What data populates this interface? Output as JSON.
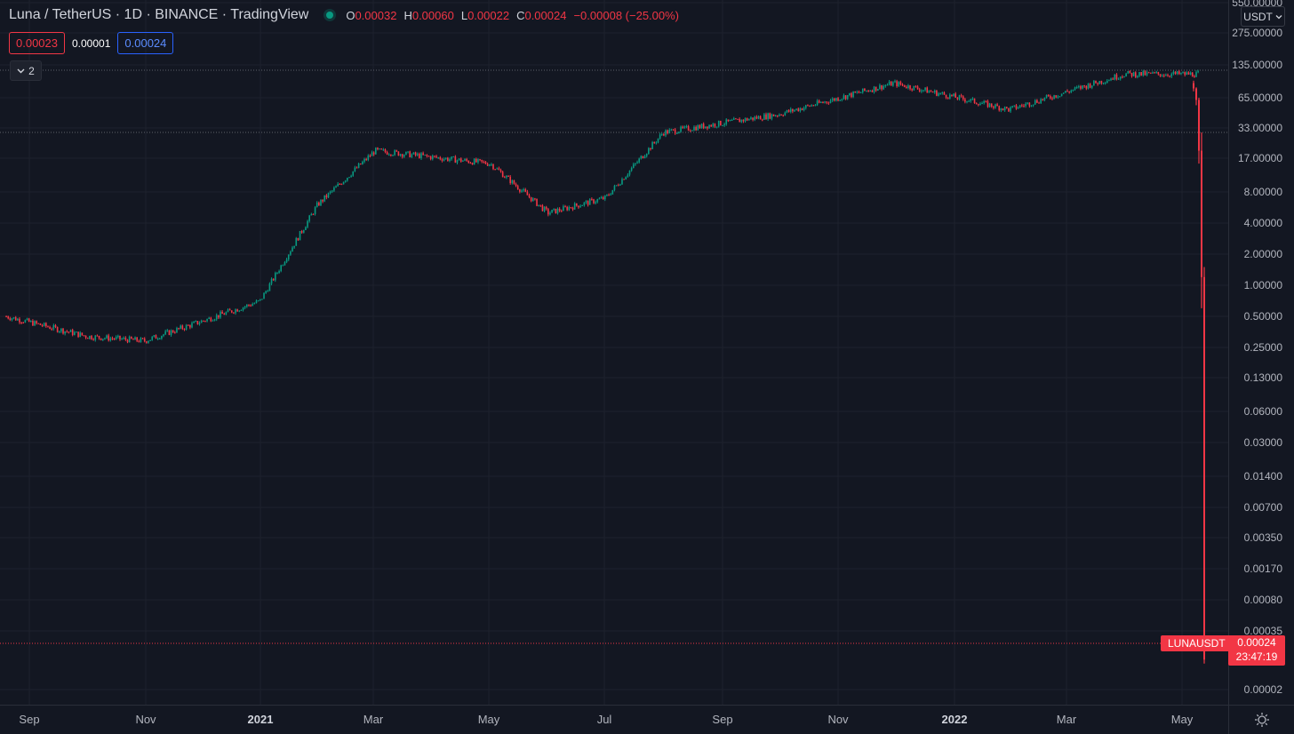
{
  "header": {
    "title": "Luna / TetherUS · 1D · BINANCE · TradingView",
    "ohlc": {
      "o_label": "O",
      "o_value": "0.00032",
      "h_label": "H",
      "h_value": "0.00060",
      "l_label": "L",
      "l_value": "0.00022",
      "c_label": "C",
      "c_value": "0.00024",
      "change": "−0.00008 (−25.00%)"
    },
    "live_indicator_icon": "live-dot-icon"
  },
  "quote": {
    "bid": "0.00023",
    "spread": "0.00001",
    "ask": "0.00024"
  },
  "collapse_button": {
    "label": "2",
    "icon": "chevron-down-icon"
  },
  "currency": {
    "label": "USDT"
  },
  "price_scale": {
    "labels": [
      "550.00000",
      "275.00000",
      "135.00000",
      "65.00000",
      "33.00000",
      "17.00000",
      "8.00000",
      "4.00000",
      "2.00000",
      "1.00000",
      "0.50000",
      "0.25000",
      "0.13000",
      "0.06000",
      "0.03000",
      "0.01400",
      "0.00700",
      "0.00350",
      "0.00170",
      "0.00080",
      "0.00035",
      "0.00002"
    ]
  },
  "time_scale": {
    "labels": [
      "Sep",
      "Nov",
      "2021",
      "Mar",
      "May",
      "Jul",
      "Sep",
      "Nov",
      "2022",
      "Mar",
      "May"
    ]
  },
  "last_price": {
    "symbol": "LUNAUSDT",
    "price": "0.00024",
    "countdown": "23:47:19"
  },
  "settings_icon": "gear-icon",
  "colors": {
    "background": "#131722",
    "up": "#089981",
    "down": "#f23645",
    "grid": "#1e222d",
    "ask": "#2962ff"
  },
  "chart_data": {
    "type": "candlestick",
    "scale": "log",
    "x_range": [
      "2020-08",
      "2022-05"
    ],
    "y_range": [
      2e-05,
      550
    ],
    "key_points": [
      {
        "date": "2020-09",
        "price": 0.5
      },
      {
        "date": "2020-10",
        "price": 0.32
      },
      {
        "date": "2020-11",
        "price": 0.29
      },
      {
        "date": "2021-01",
        "price": 0.7
      },
      {
        "date": "2021-02",
        "price": 6
      },
      {
        "date": "2021-03",
        "price": 20
      },
      {
        "date": "2021-05",
        "price": 15
      },
      {
        "date": "2021-06",
        "price": 5
      },
      {
        "date": "2021-07",
        "price": 7
      },
      {
        "date": "2021-08",
        "price": 30
      },
      {
        "date": "2021-10",
        "price": 45
      },
      {
        "date": "2021-12",
        "price": 90
      },
      {
        "date": "2022-02",
        "price": 50
      },
      {
        "date": "2022-04",
        "price": 110
      },
      {
        "date": "2022-05",
        "price": 0.00024
      }
    ]
  }
}
